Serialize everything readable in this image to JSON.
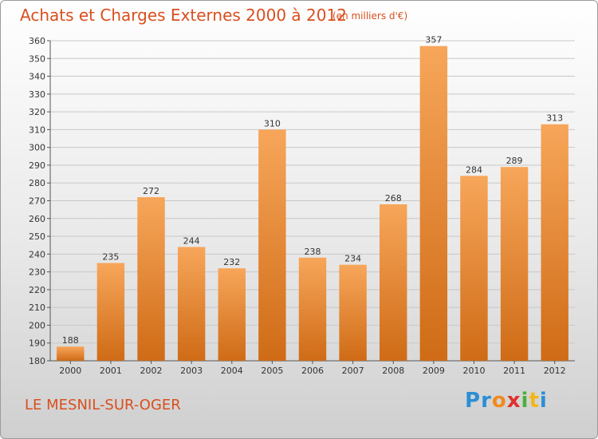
{
  "chart_data": {
    "type": "bar",
    "title": "Achats et Charges Externes 2000 à 2012",
    "subtitle": "(en milliers d'€)",
    "categories": [
      "2000",
      "2001",
      "2002",
      "2003",
      "2004",
      "2005",
      "2006",
      "2007",
      "2008",
      "2009",
      "2010",
      "2011",
      "2012"
    ],
    "values": [
      188,
      235,
      272,
      244,
      232,
      310,
      238,
      234,
      268,
      357,
      284,
      289,
      313
    ],
    "ylim": [
      180,
      360
    ],
    "yticks": [
      180,
      190,
      200,
      210,
      220,
      230,
      240,
      250,
      260,
      270,
      280,
      290,
      300,
      310,
      320,
      330,
      340,
      350,
      360
    ],
    "grid": true,
    "bar_color_top": "#f7a65a",
    "bar_color_bottom": "#cf6b16"
  },
  "footer": {
    "place": "LE MESNIL-SUR-OGER",
    "logo": [
      "P",
      "r",
      "o",
      "x",
      "i",
      "t",
      "i"
    ],
    "logo_colors": [
      "#2a8fd6",
      "#2a8fd6",
      "#f28a1c",
      "#e0312b",
      "#4caf3a",
      "#f2b61c",
      "#2a8fd6"
    ]
  },
  "colors": {
    "title": "#d94f1e",
    "axis": "#555555",
    "grid": "#c8c8c8"
  }
}
